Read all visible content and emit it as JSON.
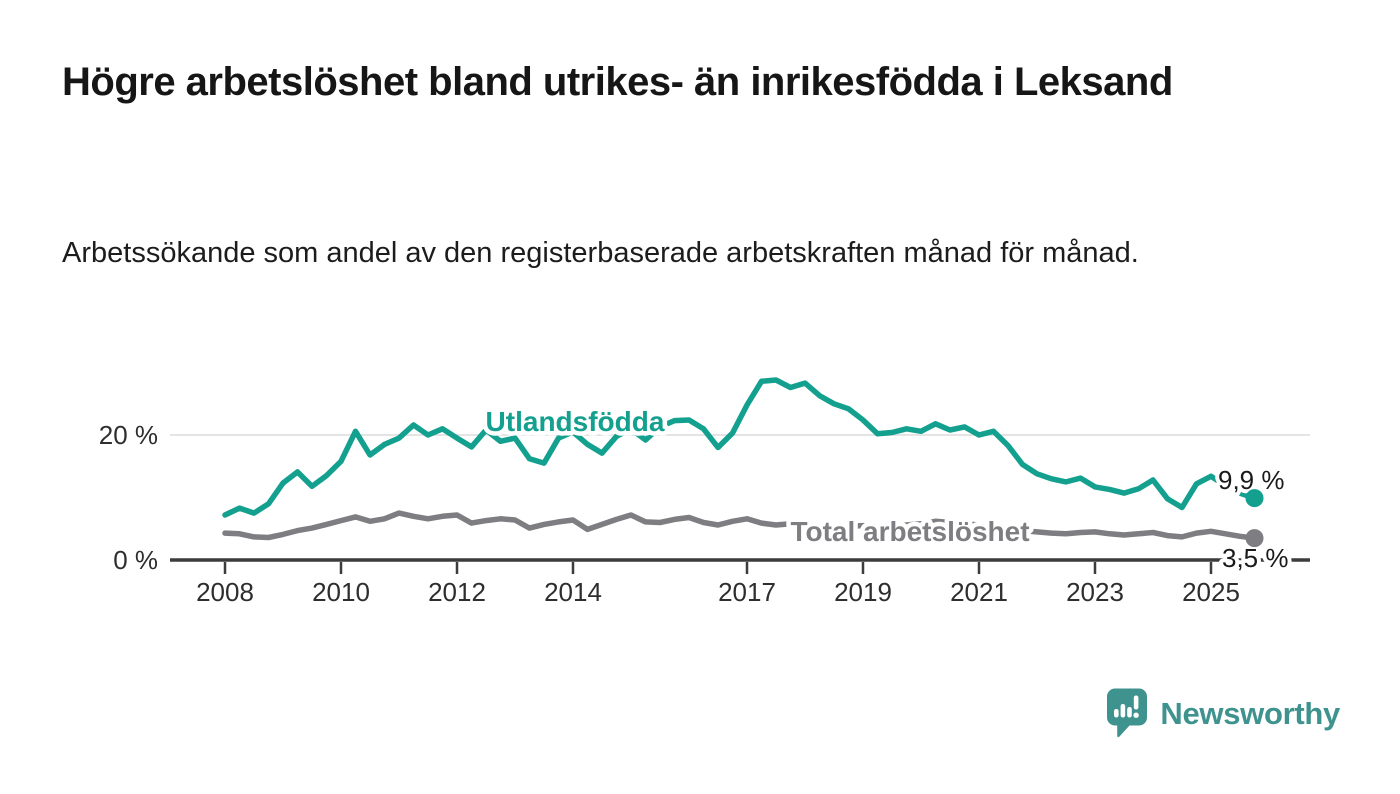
{
  "header": {
    "title": "Högre arbetslöshet bland utrikes- än inrikesfödda i Leksand",
    "subtitle": "Arbetssökande som andel av den registerbaserade arbetskraften månad för månad."
  },
  "chart_data": {
    "type": "line",
    "title": "Högre arbetslöshet bland utrikes- än inrikesfödda i Leksand",
    "subtitle": "Arbetssökande som andel av den registerbaserade arbetskraften månad för månad.",
    "x_unit": "year (monthly observations, quarterly sampled)",
    "xlim": [
      2008,
      2025.75
    ],
    "ylim": [
      0,
      30
    ],
    "grid": "horizontal-only",
    "x": [
      2008.0,
      2008.25,
      2008.5,
      2008.75,
      2009.0,
      2009.25,
      2009.5,
      2009.75,
      2010.0,
      2010.25,
      2010.5,
      2010.75,
      2011.0,
      2011.25,
      2011.5,
      2011.75,
      2012.0,
      2012.25,
      2012.5,
      2012.75,
      2013.0,
      2013.25,
      2013.5,
      2013.75,
      2014.0,
      2014.25,
      2014.5,
      2014.75,
      2015.0,
      2015.25,
      2015.5,
      2015.75,
      2016.0,
      2016.25,
      2016.5,
      2016.75,
      2017.0,
      2017.25,
      2017.5,
      2017.75,
      2018.0,
      2018.25,
      2018.5,
      2018.75,
      2019.0,
      2019.25,
      2019.5,
      2019.75,
      2020.0,
      2020.25,
      2020.5,
      2020.75,
      2021.0,
      2021.25,
      2021.5,
      2021.75,
      2022.0,
      2022.25,
      2022.5,
      2022.75,
      2023.0,
      2023.25,
      2023.5,
      2023.75,
      2024.0,
      2024.25,
      2024.5,
      2024.75,
      2025.0,
      2025.25,
      2025.5,
      2025.75
    ],
    "series": [
      {
        "name": "Utlandsfödda",
        "color": "#13A08F",
        "end_label": "9,9 %",
        "end_value": 9.9,
        "values": [
          7.2,
          8.3,
          7.5,
          9.0,
          12.3,
          14.1,
          11.8,
          13.5,
          15.8,
          20.6,
          16.8,
          18.5,
          19.5,
          21.6,
          20.0,
          21.0,
          19.5,
          18.1,
          20.8,
          19.0,
          19.5,
          16.2,
          15.5,
          19.5,
          20.5,
          18.5,
          17.1,
          19.8,
          21.0,
          19.2,
          21.3,
          22.3,
          22.4,
          21.0,
          18.0,
          20.3,
          24.8,
          28.6,
          28.8,
          27.6,
          28.3,
          26.3,
          25.0,
          24.2,
          22.4,
          20.2,
          20.4,
          21.0,
          20.6,
          21.8,
          20.8,
          21.3,
          20.0,
          20.6,
          18.3,
          15.3,
          13.8,
          13.0,
          12.5,
          13.1,
          11.7,
          11.3,
          10.7,
          11.4,
          12.8,
          9.8,
          8.4,
          12.2,
          13.4,
          11.9,
          10.7,
          9.9
        ]
      },
      {
        "name": "Total arbetslöshet",
        "color": "#7E7E82",
        "end_label": "3,5 %",
        "end_value": 3.5,
        "values": [
          4.3,
          4.2,
          3.7,
          3.6,
          4.1,
          4.7,
          5.1,
          5.7,
          6.3,
          6.9,
          6.2,
          6.6,
          7.5,
          7.0,
          6.6,
          7.0,
          7.2,
          5.9,
          6.3,
          6.6,
          6.4,
          5.1,
          5.7,
          6.1,
          6.4,
          4.9,
          5.7,
          6.5,
          7.2,
          6.1,
          6.0,
          6.5,
          6.8,
          6.0,
          5.6,
          6.2,
          6.6,
          5.9,
          5.6,
          5.8,
          5.9,
          5.4,
          5.2,
          5.4,
          5.5,
          5.2,
          5.3,
          5.6,
          5.8,
          6.2,
          6.0,
          5.8,
          5.6,
          5.2,
          4.9,
          4.7,
          4.5,
          4.3,
          4.2,
          4.4,
          4.5,
          4.2,
          4.0,
          4.2,
          4.4,
          3.9,
          3.7,
          4.3,
          4.6,
          4.2,
          3.8,
          3.5
        ]
      }
    ],
    "x_ticks": [
      {
        "year": 2008,
        "label": "2008"
      },
      {
        "year": 2010,
        "label": "2010"
      },
      {
        "year": 2012,
        "label": "2012"
      },
      {
        "year": 2014,
        "label": "2014"
      },
      {
        "year": 2017,
        "label": "2017"
      },
      {
        "year": 2019,
        "label": "2019"
      },
      {
        "year": 2021,
        "label": "2021"
      },
      {
        "year": 2023,
        "label": "2023"
      },
      {
        "year": 2025,
        "label": "2025"
      }
    ],
    "y_ticks": [
      {
        "value": 0,
        "label": "0 %"
      },
      {
        "value": 20,
        "label": "20 %"
      }
    ],
    "colors": {
      "grid": "#DBDBDB",
      "axis": "#3C3C3C",
      "tick_text": "#2E2E2E",
      "value_label_text": "#1A1A1A"
    }
  },
  "branding": {
    "logo_text": "Newsworthy",
    "logo_color": "#3F938E",
    "logo_icon": "speech-bubble-bar-chart-icon"
  }
}
